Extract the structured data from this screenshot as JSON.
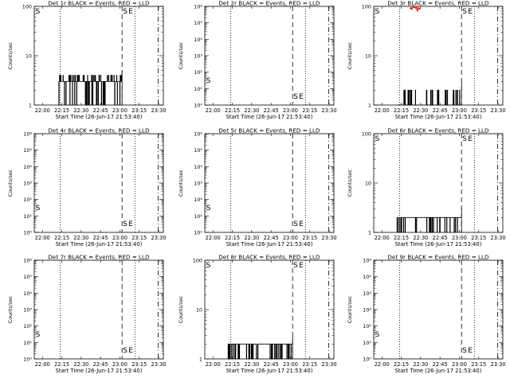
{
  "figure": {
    "xlabel": "Start Time (26-Jun-17 21:53:40)",
    "ylabel": "Counts/sec",
    "x_ticks": [
      "22:00",
      "22:15",
      "22:30",
      "22:45",
      "23:00",
      "23:15",
      "23:30"
    ],
    "marker_s": "S",
    "marker_e": "E",
    "colors": {
      "events": "#000000",
      "lld": "#ff0000",
      "background": "#ffffff"
    }
  },
  "chart_data": [
    {
      "type": "line",
      "title": "Det 1r BLACK = Events, RED = LLD",
      "y_scale": "log",
      "ylim": [
        1,
        100
      ],
      "y_tick_labels": [
        "1",
        "10",
        "100"
      ],
      "xlim_minutes": [
        0,
        100
      ],
      "s_marker_minutes": 1,
      "e_marker_minutes": 73,
      "dotted_lines_minutes": [
        20,
        78
      ],
      "dashed_line_minutes": 68,
      "dashdot_line_minutes": 96,
      "events": {
        "baseline": 3,
        "start": 19,
        "end": 68,
        "low": 1,
        "high": 4,
        "spike": 5,
        "density": 0.35
      },
      "lld": null
    },
    {
      "type": "line",
      "title": "Det 2r BLACK = Events, RED = LLD",
      "y_scale": "log",
      "ylim": [
        1,
        1000001
      ],
      "y_tick_labels": [
        "10⁰",
        "10¹",
        "10²",
        "10³",
        "10⁴",
        "10⁵",
        "10⁶"
      ],
      "xlim_minutes": [
        0,
        100
      ],
      "s_marker_minutes": 1,
      "e_marker_minutes": 73,
      "dotted_lines_minutes": [
        20,
        78
      ],
      "dashed_line_minutes": 68,
      "dashdot_line_minutes": 96,
      "events": null,
      "lld": null
    },
    {
      "type": "line",
      "title": "Det 3r BLACK = Events, RED = LLD",
      "y_scale": "log",
      "ylim": [
        1,
        100
      ],
      "y_tick_labels": [
        "1",
        "10",
        "100"
      ],
      "xlim_minutes": [
        0,
        100
      ],
      "s_marker_minutes": 1,
      "e_marker_minutes": 73,
      "dotted_lines_minutes": [
        20,
        78
      ],
      "dashed_line_minutes": 68,
      "dashdot_line_minutes": 96,
      "events": {
        "baseline": 1,
        "start": 18,
        "end": 68,
        "low": 1,
        "high": 2,
        "spike": 3,
        "density": 0.3
      },
      "lld": {
        "start": 28,
        "end": 36,
        "value": 100
      }
    },
    {
      "type": "line",
      "title": "Det 4r BLACK = Events, RED = LLD",
      "y_scale": "log",
      "ylim": [
        1,
        1000001
      ],
      "y_tick_labels": [
        "10⁰",
        "10¹",
        "10²",
        "10³",
        "10⁴",
        "10⁵",
        "10⁶"
      ],
      "xlim_minutes": [
        0,
        100
      ],
      "s_marker_minutes": 1,
      "e_marker_minutes": 73,
      "dotted_lines_minutes": [
        20,
        78
      ],
      "dashed_line_minutes": 68,
      "dashdot_line_minutes": 96,
      "events": null,
      "lld": null
    },
    {
      "type": "line",
      "title": "Det 5r BLACK = Events, RED = LLD",
      "y_scale": "log",
      "ylim": [
        1,
        1000001
      ],
      "y_tick_labels": [
        "10⁰",
        "10¹",
        "10²",
        "10³",
        "10⁴",
        "10⁵",
        "10⁶"
      ],
      "xlim_minutes": [
        0,
        100
      ],
      "s_marker_minutes": 1,
      "e_marker_minutes": 73,
      "dotted_lines_minutes": [
        20,
        78
      ],
      "dashed_line_minutes": 68,
      "dashdot_line_minutes": 96,
      "events": null,
      "lld": null
    },
    {
      "type": "line",
      "title": "Det 6r BLACK = Events, RED = LLD",
      "y_scale": "log",
      "ylim": [
        1,
        100
      ],
      "y_tick_labels": [
        "1",
        "10",
        "100"
      ],
      "xlim_minutes": [
        0,
        100
      ],
      "s_marker_minutes": 1,
      "e_marker_minutes": 73,
      "dotted_lines_minutes": [
        20,
        78
      ],
      "dashed_line_minutes": 68,
      "dashdot_line_minutes": 96,
      "events": {
        "baseline": 2,
        "start": 18,
        "end": 68,
        "low": 1,
        "high": 2,
        "spike": 3,
        "density": 0.3
      },
      "lld": null
    },
    {
      "type": "line",
      "title": "Det 7r BLACK = Events, RED = LLD",
      "y_scale": "log",
      "ylim": [
        1,
        1000001
      ],
      "y_tick_labels": [
        "10⁰",
        "10¹",
        "10²",
        "10³",
        "10⁴",
        "10⁵",
        "10⁶"
      ],
      "xlim_minutes": [
        0,
        100
      ],
      "s_marker_minutes": 1,
      "e_marker_minutes": 73,
      "dotted_lines_minutes": [
        20,
        78
      ],
      "dashed_line_minutes": 68,
      "dashdot_line_minutes": 96,
      "events": null,
      "lld": null
    },
    {
      "type": "line",
      "title": "Det 8r BLACK = Events, RED = LLD",
      "y_scale": "log",
      "ylim": [
        1,
        100
      ],
      "y_tick_labels": [
        "1",
        "10",
        "100"
      ],
      "xlim_minutes": [
        0,
        100
      ],
      "s_marker_minutes": 1,
      "e_marker_minutes": 73,
      "dotted_lines_minutes": [
        20,
        78
      ],
      "dashed_line_minutes": 68,
      "dashdot_line_minutes": 96,
      "events": {
        "baseline": 2,
        "start": 18,
        "end": 68,
        "low": 1,
        "high": 2,
        "spike": 3,
        "density": 0.3
      },
      "lld": null
    },
    {
      "type": "line",
      "title": "Det 9r BLACK = Events, RED = LLD",
      "y_scale": "log",
      "ylim": [
        1,
        1000001
      ],
      "y_tick_labels": [
        "10⁰",
        "10¹",
        "10²",
        "10³",
        "10⁴",
        "10⁵",
        "10⁶"
      ],
      "xlim_minutes": [
        0,
        100
      ],
      "s_marker_minutes": 1,
      "e_marker_minutes": 73,
      "dotted_lines_minutes": [
        20,
        78
      ],
      "dashed_line_minutes": 68,
      "dashdot_line_minutes": 96,
      "events": null,
      "lld": null
    }
  ]
}
